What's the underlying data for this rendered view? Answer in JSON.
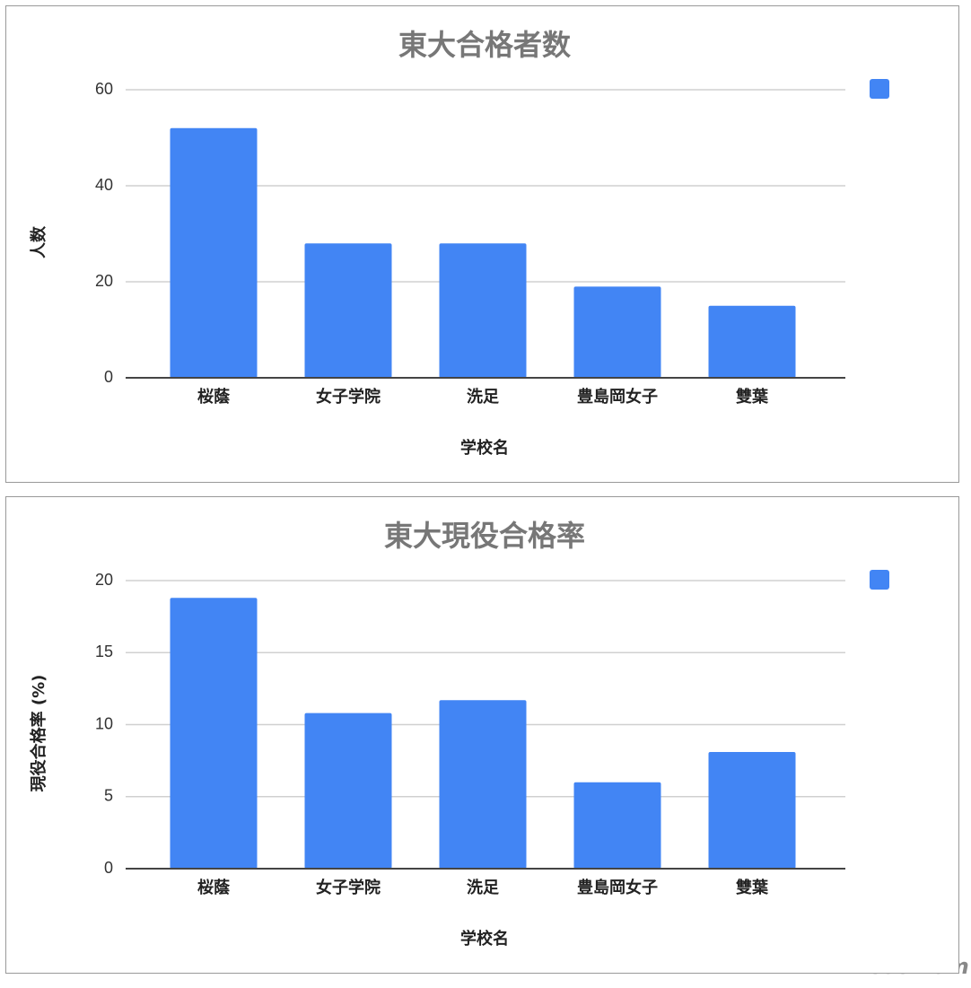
{
  "chart_data": [
    {
      "type": "bar",
      "title": "東大合格者数",
      "x_label": "学校名",
      "y_label": "人数",
      "categories": [
        "桜蔭",
        "女子学院",
        "洗足",
        "豊島岡女子",
        "雙葉"
      ],
      "series": [
        {
          "color": "#4285f4",
          "values": [
            52,
            28,
            28,
            19,
            15
          ]
        }
      ],
      "ylim": [
        0,
        60
      ],
      "yticks": [
        0,
        20,
        40,
        60
      ],
      "grid": true,
      "legend": "top-right"
    },
    {
      "type": "bar",
      "title": "東大現役合格率",
      "x_label": "学校名",
      "y_label": "現役合格率 (%)",
      "categories": [
        "桜蔭",
        "女子学院",
        "洗足",
        "豊島岡女子",
        "雙葉"
      ],
      "series": [
        {
          "color": "#4285f4",
          "values": [
            18.8,
            10.8,
            11.7,
            6.0,
            8.1
          ]
        }
      ],
      "ylim": [
        0,
        20
      ],
      "yticks": [
        0,
        5,
        10,
        15,
        20
      ],
      "grid": true,
      "legend": "top-right"
    }
  ],
  "watermark": "ReseMom"
}
